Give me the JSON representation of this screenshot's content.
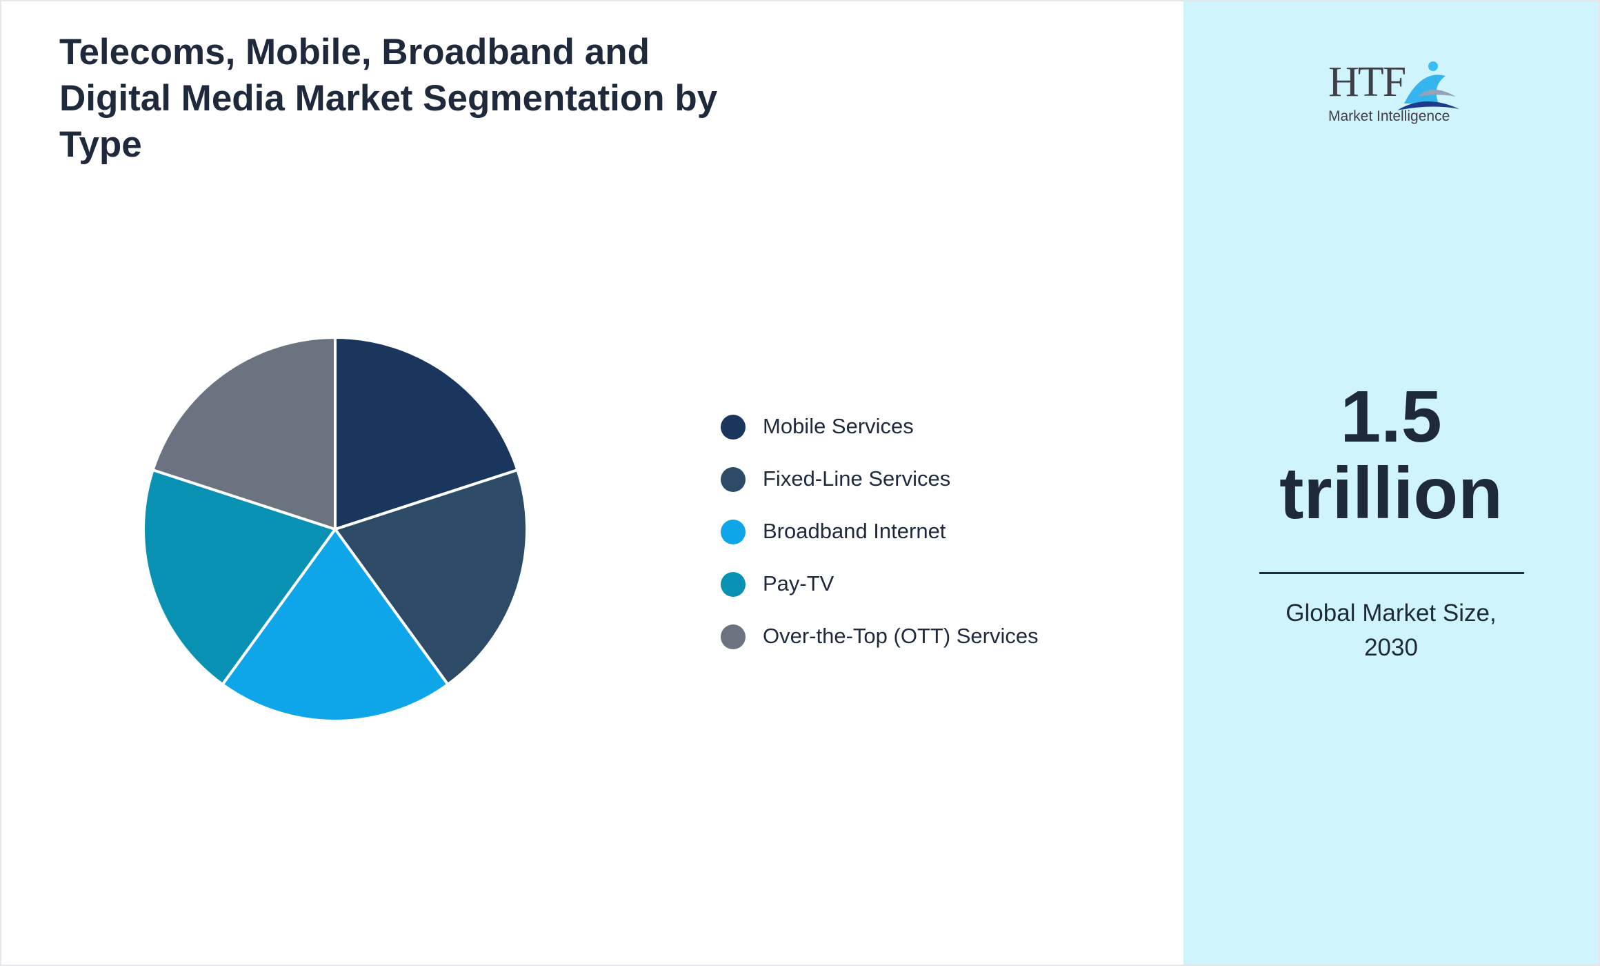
{
  "chart_data": {
    "type": "pie",
    "title": "Telecoms, Mobile, Broadband and Digital Media Market Segmentation by Type",
    "categories": [
      "Mobile Services",
      "Fixed-Line Services",
      "Broadband Internet",
      "Pay-TV",
      "Over-the-Top (OTT) Services"
    ],
    "values": [
      20,
      20,
      20,
      20,
      20
    ],
    "colors": [
      "#1b365d",
      "#2d4a66",
      "#0ea5e9",
      "#0891b2",
      "#6b7280"
    ]
  },
  "side_panel": {
    "logo": {
      "name": "HTF",
      "subtitle": "Market Intelligence"
    },
    "value": "1.5",
    "unit": "trillion",
    "caption": "Global Market Size, 2030"
  }
}
